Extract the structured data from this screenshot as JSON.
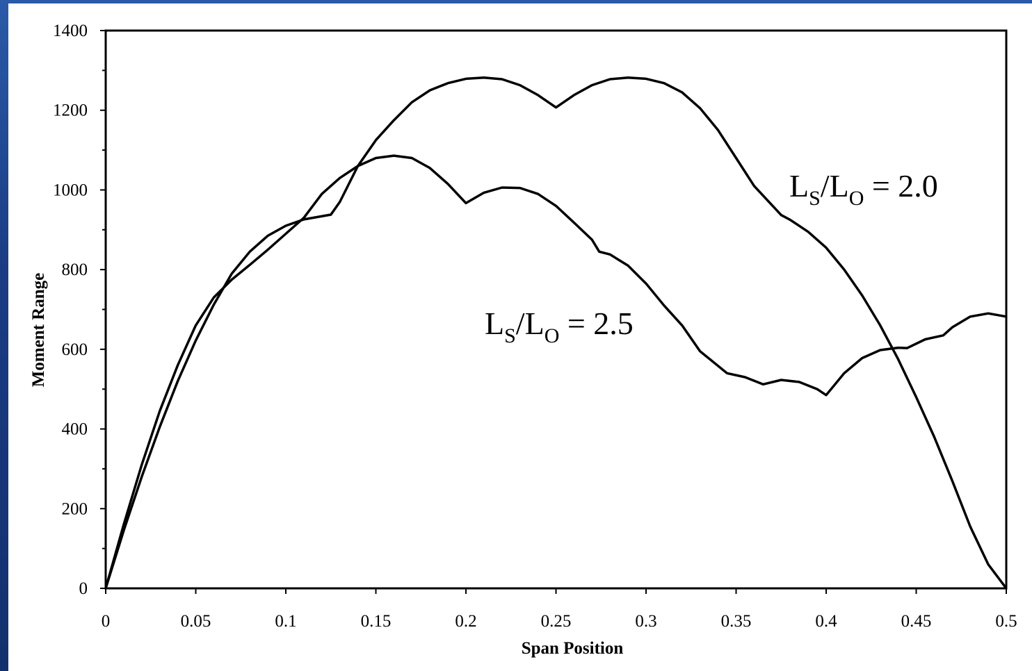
{
  "chart_data": {
    "type": "line",
    "title": "",
    "xlabel": "Span Position",
    "ylabel": "Moment Range",
    "xlim": [
      0,
      0.5
    ],
    "ylim": [
      0,
      1400
    ],
    "x_ticks": [
      "0",
      "0.05",
      "0.1",
      "0.15",
      "0.2",
      "0.25",
      "0.3",
      "0.35",
      "0.4",
      "0.45",
      "0.5"
    ],
    "y_ticks": [
      "0",
      "200",
      "400",
      "600",
      "800",
      "1000",
      "1200",
      "1400"
    ],
    "grid": false,
    "legend": "none",
    "annotations": [
      {
        "main": "L",
        "sub1": "S",
        "mid": "/L",
        "sub2": "O",
        "tail": " = 2.0",
        "series": 0
      },
      {
        "main": "L",
        "sub1": "S",
        "mid": "/L",
        "sub2": "O",
        "tail": " = 2.5",
        "series": 1
      }
    ],
    "series": [
      {
        "name": "",
        "color": "#000000",
        "points": [
          [
            0,
            0
          ],
          [
            0.01,
            145
          ],
          [
            0.02,
            280
          ],
          [
            0.03,
            405
          ],
          [
            0.04,
            520
          ],
          [
            0.05,
            622
          ],
          [
            0.06,
            712
          ],
          [
            0.07,
            790
          ],
          [
            0.08,
            845
          ],
          [
            0.09,
            885
          ],
          [
            0.1,
            910
          ],
          [
            0.11,
            926
          ],
          [
            0.125,
            938
          ],
          [
            0.13,
            970
          ],
          [
            0.14,
            1060
          ],
          [
            0.15,
            1125
          ],
          [
            0.16,
            1175
          ],
          [
            0.17,
            1220
          ],
          [
            0.18,
            1250
          ],
          [
            0.19,
            1268
          ],
          [
            0.2,
            1279
          ],
          [
            0.21,
            1282
          ],
          [
            0.22,
            1278
          ],
          [
            0.23,
            1263
          ],
          [
            0.24,
            1238
          ],
          [
            0.25,
            1207
          ],
          [
            0.26,
            1238
          ],
          [
            0.27,
            1263
          ],
          [
            0.28,
            1278
          ],
          [
            0.29,
            1282
          ],
          [
            0.3,
            1279
          ],
          [
            0.31,
            1268
          ],
          [
            0.32,
            1245
          ],
          [
            0.33,
            1205
          ],
          [
            0.34,
            1150
          ],
          [
            0.35,
            1080
          ],
          [
            0.36,
            1010
          ],
          [
            0.375,
            937
          ],
          [
            0.38,
            925
          ],
          [
            0.39,
            895
          ],
          [
            0.4,
            855
          ],
          [
            0.41,
            800
          ],
          [
            0.42,
            735
          ],
          [
            0.43,
            660
          ],
          [
            0.44,
            575
          ],
          [
            0.45,
            480
          ],
          [
            0.46,
            380
          ],
          [
            0.47,
            270
          ],
          [
            0.48,
            155
          ],
          [
            0.49,
            60
          ],
          [
            0.5,
            0
          ]
        ]
      },
      {
        "name": "",
        "color": "#000000",
        "points": [
          [
            0,
            0
          ],
          [
            0.01,
            160
          ],
          [
            0.02,
            310
          ],
          [
            0.03,
            445
          ],
          [
            0.04,
            560
          ],
          [
            0.05,
            660
          ],
          [
            0.06,
            730
          ],
          [
            0.07,
            775
          ],
          [
            0.08,
            812
          ],
          [
            0.09,
            850
          ],
          [
            0.1,
            890
          ],
          [
            0.11,
            930
          ],
          [
            0.12,
            990
          ],
          [
            0.13,
            1030
          ],
          [
            0.14,
            1060
          ],
          [
            0.15,
            1080
          ],
          [
            0.16,
            1086
          ],
          [
            0.17,
            1080
          ],
          [
            0.18,
            1055
          ],
          [
            0.19,
            1015
          ],
          [
            0.2,
            967
          ],
          [
            0.21,
            993
          ],
          [
            0.22,
            1006
          ],
          [
            0.23,
            1005
          ],
          [
            0.24,
            990
          ],
          [
            0.25,
            960
          ],
          [
            0.26,
            918
          ],
          [
            0.27,
            875
          ],
          [
            0.274,
            845
          ],
          [
            0.28,
            838
          ],
          [
            0.29,
            810
          ],
          [
            0.3,
            765
          ],
          [
            0.31,
            710
          ],
          [
            0.32,
            660
          ],
          [
            0.33,
            595
          ],
          [
            0.345,
            540
          ],
          [
            0.355,
            530
          ],
          [
            0.365,
            512
          ],
          [
            0.375,
            523
          ],
          [
            0.385,
            518
          ],
          [
            0.395,
            500
          ],
          [
            0.4,
            485
          ],
          [
            0.41,
            540
          ],
          [
            0.42,
            578
          ],
          [
            0.43,
            598
          ],
          [
            0.44,
            604
          ],
          [
            0.445,
            603
          ],
          [
            0.455,
            625
          ],
          [
            0.465,
            635
          ],
          [
            0.47,
            655
          ],
          [
            0.48,
            682
          ],
          [
            0.49,
            690
          ],
          [
            0.5,
            682
          ]
        ]
      }
    ]
  }
}
